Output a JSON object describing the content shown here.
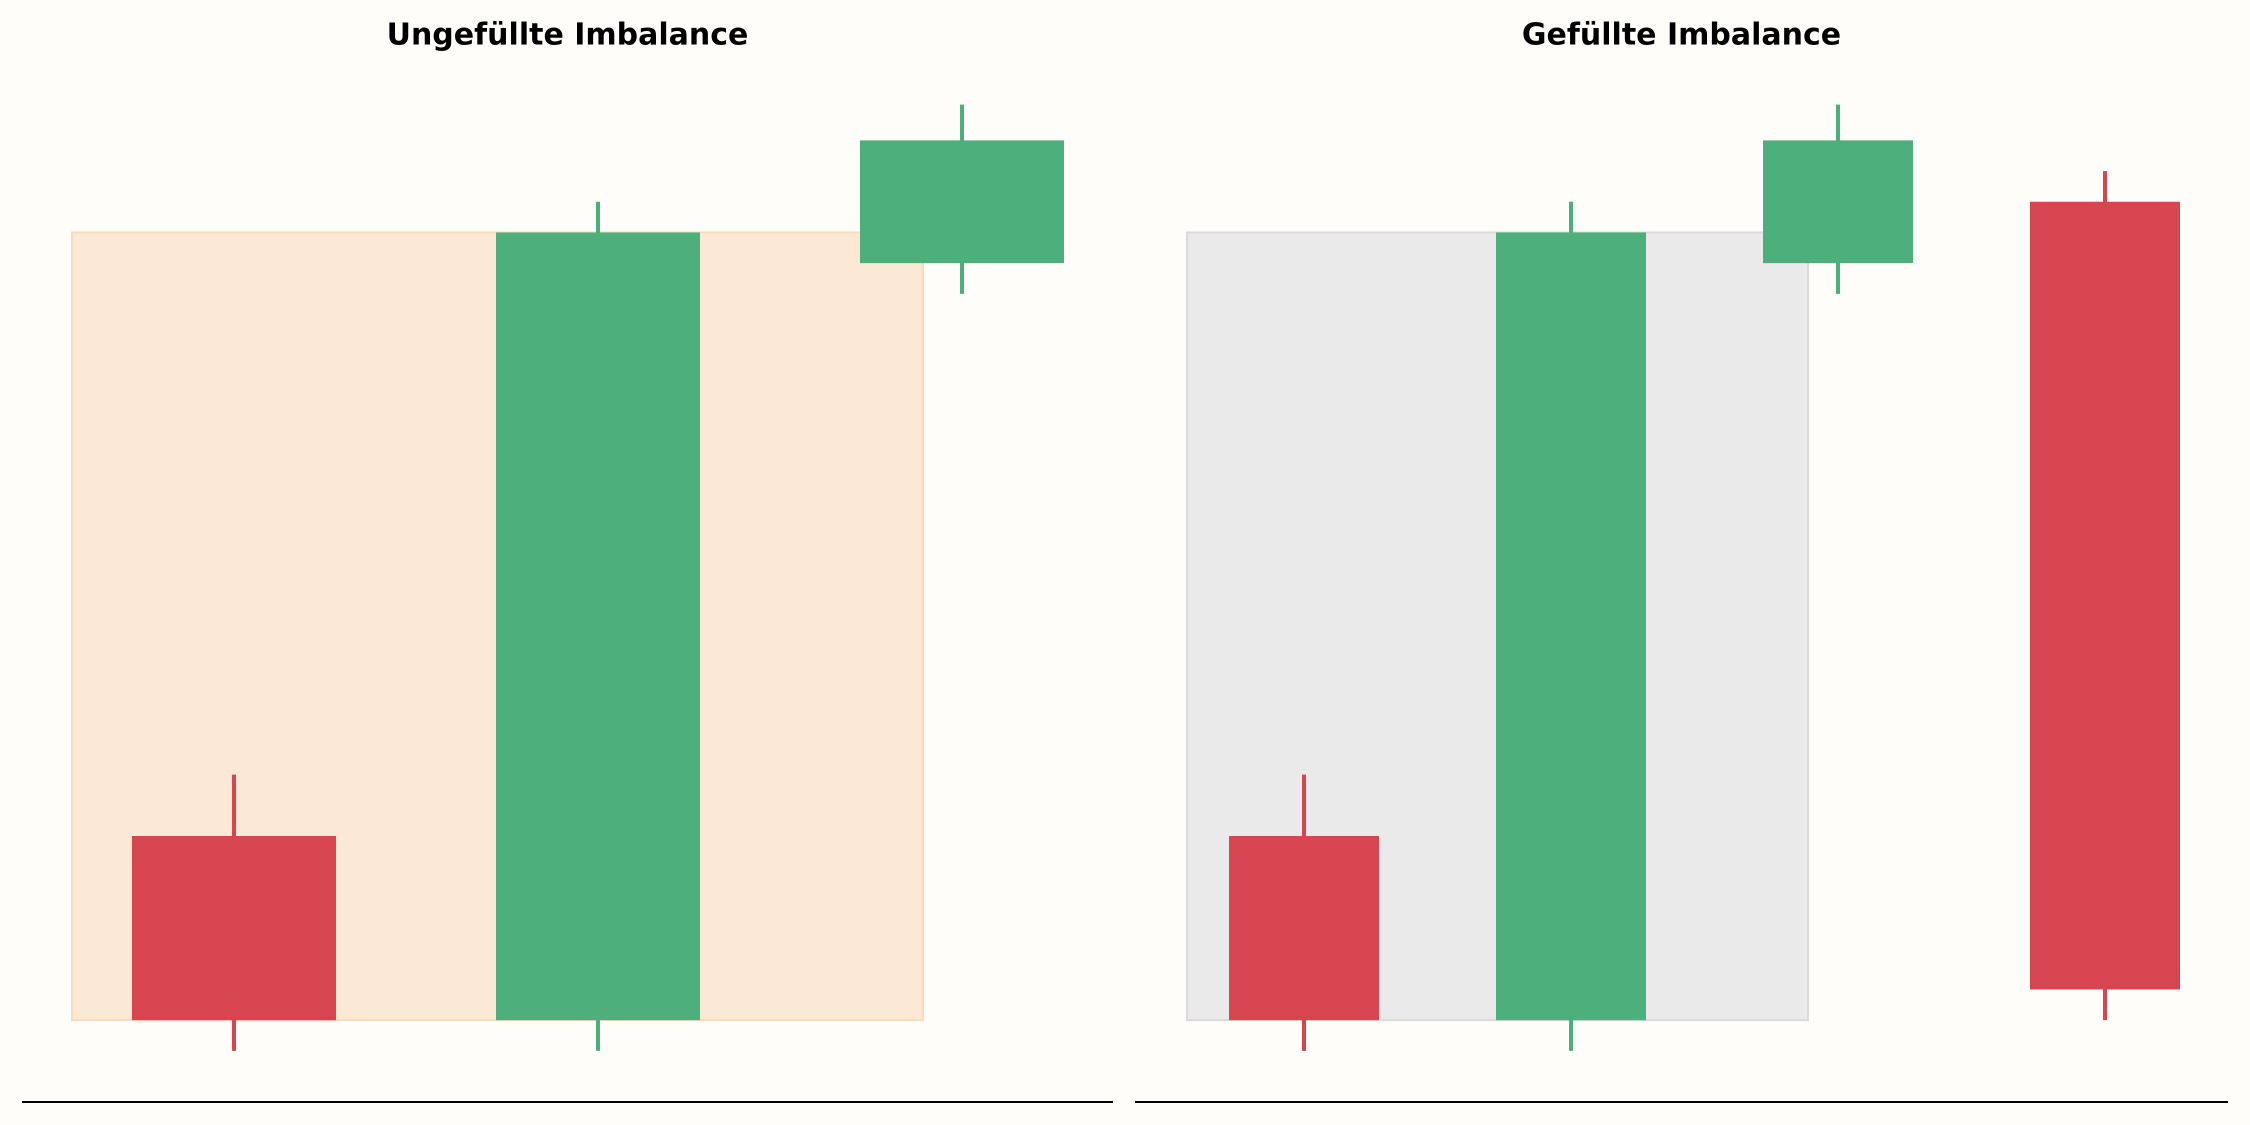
{
  "chart_data": [
    {
      "type": "candlestick",
      "title": "Ungefüllte Imbalance",
      "open": [
        26,
        8,
        82
      ],
      "high": [
        32,
        88,
        97.5
      ],
      "low": [
        5,
        5,
        79
      ],
      "close": [
        8,
        85,
        94
      ],
      "up_color": "#4daf7c",
      "down_color": "#d64550",
      "zone": {
        "low": 8,
        "high": 85,
        "color": "#fce9d5",
        "edge_color": "#f8dcbc"
      },
      "ylim": [
        0,
        100
      ]
    },
    {
      "type": "candlestick",
      "title": "Gefüllte Imbalance",
      "open": [
        26,
        8,
        82,
        88
      ],
      "high": [
        32,
        88,
        97.5,
        91
      ],
      "low": [
        5,
        5,
        79,
        8
      ],
      "close": [
        8,
        85,
        94,
        11
      ],
      "up_color": "#4daf7c",
      "down_color": "#d64550",
      "zone": {
        "low": 8,
        "high": 85,
        "color": "#eaeaea",
        "edge_color": "#dadada"
      },
      "ylim": [
        0,
        100
      ]
    }
  ]
}
